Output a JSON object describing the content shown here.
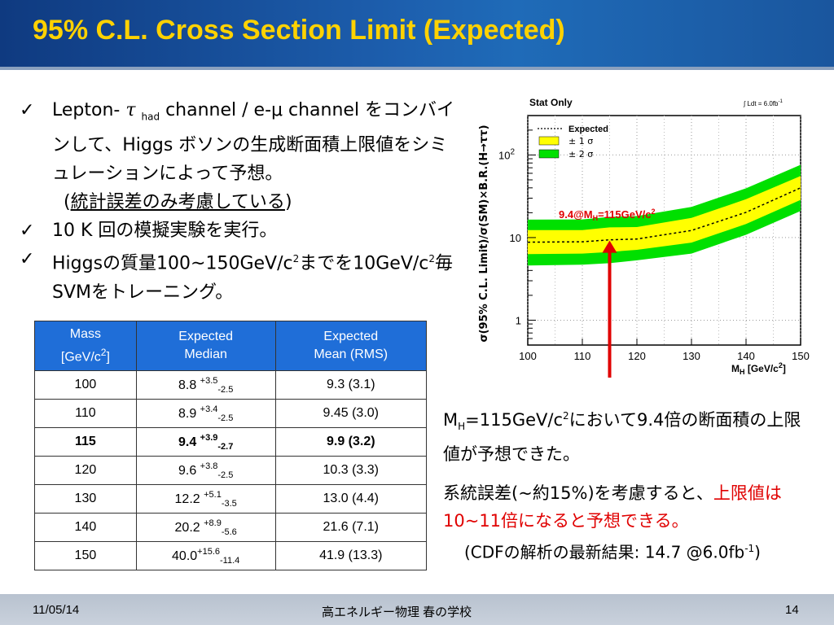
{
  "title": "95% C.L. Cross Section Limit (Expected)",
  "bullets": {
    "b1": {
      "prefix": "Lepton-",
      "tau": "τ",
      "sub": "had",
      "line1": " channel / e-μ channel をコンバインして、Higgs ボソンの生成断面積上限値をシミュレーションによって予想。",
      "paren_open": "(",
      "underlined": "統計誤差のみ考慮している",
      "paren_close": ")"
    },
    "b2": {
      "text": "10 K 回の模擬実験を実行。"
    },
    "b3": {
      "part1": "Higgsの質量100~150GeV/c",
      "sup1": "2",
      "part2": "までを10GeV/c",
      "sup2": "2",
      "part3": "毎SVMをトレーニング。"
    },
    "check": "✓"
  },
  "table": {
    "headers": [
      {
        "line1": "Mass",
        "line2": "[GeV/c",
        "sup": "2",
        "line2_end": "]"
      },
      {
        "line1": "Expected",
        "line2": "Median",
        "sup": "",
        "line2_end": ""
      },
      {
        "line1": "Expected",
        "line2": "Mean (RMS)",
        "sup": "",
        "line2_end": ""
      }
    ],
    "rows": [
      {
        "mass": "100",
        "median": "8.8 ",
        "up": "+3.5",
        "down": "-2.5",
        "mean": "9.3 (3.1)",
        "bold": false
      },
      {
        "mass": "110",
        "median": "8.9 ",
        "up": "+3.4",
        "down": "-2.5",
        "mean": "9.45 (3.0)",
        "bold": false
      },
      {
        "mass": "115",
        "median": "9.4 ",
        "up": "+3.9",
        "down": "-2.7",
        "mean": "9.9 (3.2)",
        "bold": true
      },
      {
        "mass": "120",
        "median": "9.6 ",
        "up": "+3.8",
        "down": "-2.5",
        "mean": "10.3 (3.3)",
        "bold": false
      },
      {
        "mass": "130",
        "median": "12.2 ",
        "up": "+5.1",
        "down": "-3.5",
        "mean": "13.0 (4.4)",
        "bold": false
      },
      {
        "mass": "140",
        "median": "20.2 ",
        "up": "+8.9",
        "down": "-5.6",
        "mean": "21.6 (7.1)",
        "bold": false
      },
      {
        "mass": "150",
        "median": "40.0",
        "up": "+15.6",
        "down": "-11.4",
        "mean": "41.9 (13.3)",
        "bold": false
      }
    ]
  },
  "chart_data": {
    "type": "area",
    "title": "Stat Only",
    "lumi_label": "∫ Ldt = 6.0fb",
    "lumi_sup": "-1",
    "xlabel": "M",
    "xlabel_sub": "H",
    "xlabel_end": " [GeV/c",
    "xlabel_sup": "2",
    "xlabel_close": "]",
    "ylabel": "σ(95% C.L. Limit)/σ(SM)×B.R.(H→ττ)",
    "xlim": [
      100,
      150
    ],
    "ylim": [
      0.5,
      300
    ],
    "yscale": "log",
    "x_ticks": [
      100,
      110,
      120,
      130,
      140,
      150
    ],
    "y_tick_labels": [
      {
        "value": 1,
        "label": "1"
      },
      {
        "value": 10,
        "label": "10"
      },
      {
        "value": 100,
        "label": "10",
        "sup": "2"
      }
    ],
    "grid": true,
    "legend_position": "top-left",
    "legend": [
      {
        "label": "Expected",
        "style": "dotted"
      },
      {
        "label": "± 1 σ",
        "color": "#ffff00"
      },
      {
        "label": "± 2 σ",
        "color": "#00e000"
      }
    ],
    "x": [
      100,
      110,
      115,
      120,
      130,
      140,
      150
    ],
    "expected": [
      8.8,
      8.9,
      9.4,
      9.6,
      12.2,
      20.2,
      40.0
    ],
    "band_1sigma_low": [
      6.3,
      6.4,
      6.7,
      7.1,
      8.7,
      14.6,
      28.6
    ],
    "band_1sigma_high": [
      12.3,
      12.3,
      13.3,
      13.4,
      17.3,
      29.1,
      55.6
    ],
    "band_2sigma_low": [
      4.6,
      4.7,
      4.9,
      5.3,
      6.4,
      10.8,
      21.0
    ],
    "band_2sigma_high": [
      16.5,
      16.6,
      17.8,
      18.2,
      23.5,
      39.5,
      76.0
    ],
    "annotation": {
      "text_a": "9.4@M",
      "sub": "H",
      "text_b": "=115GeV/c",
      "sup": "2",
      "x": 115,
      "y": 9.4,
      "color": "#e00000"
    },
    "colors": {
      "band2": "#00e000",
      "band1": "#ffff00",
      "expected": "#000000",
      "arrow": "#e00000"
    }
  },
  "side": {
    "p1_a": "M",
    "p1_sub": "H",
    "p1_b": "=115GeV/c",
    "p1_sup": "2",
    "p1_c": "において9.4倍の断面積の上限値が予想できた。",
    "p2_a": "系統誤差(~約15%)を考慮すると、",
    "p2_red": "上限値は10~11倍になると予想できる。",
    "p3_a": "(CDFの解析の最新結果: 14.7 @6.0fb",
    "p3_sup": "-1",
    "p3_b": ")"
  },
  "footer": {
    "date": "11/05/14",
    "center": "高エネルギー物理 春の学校",
    "page": "14"
  }
}
